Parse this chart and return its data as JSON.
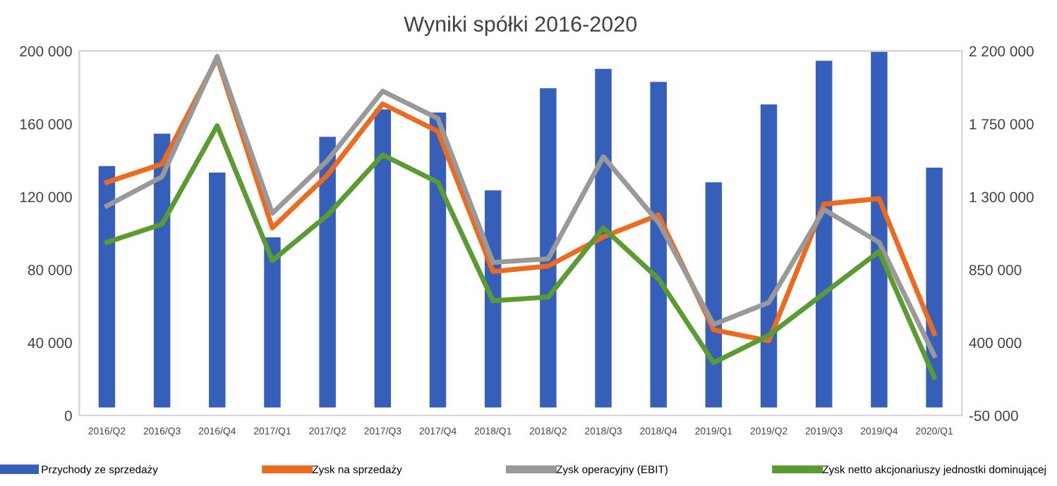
{
  "chart_data": {
    "type": "bar",
    "title": "Wyniki spółki 2016-2020",
    "categories": [
      "2016/Q2",
      "2016/Q3",
      "2016/Q4",
      "2017/Q1",
      "2017/Q2",
      "2017/Q3",
      "2017/Q4",
      "2018/Q1",
      "2018/Q2",
      "2018/Q3",
      "2018/Q4",
      "2019/Q1",
      "2019/Q2",
      "2019/Q3",
      "2019/Q4",
      "2020/Q1"
    ],
    "series": [
      {
        "name": "Przychody ze sprzedaży",
        "axis": "y2",
        "color": "#355fb8",
        "values": [
          1490000,
          1690000,
          1450000,
          1050000,
          1670000,
          1840000,
          1820000,
          1340000,
          1970000,
          2090000,
          2010000,
          1390000,
          1870000,
          2140000,
          2200000,
          1480000
        ]
      },
      {
        "name": "Zysk na sprzedaży",
        "type": "line",
        "color": "#ed6a1f",
        "values": [
          128000,
          138000,
          196000,
          103000,
          132000,
          171000,
          156000,
          79000,
          82000,
          98000,
          110000,
          47000,
          41000,
          116000,
          119000,
          45000
        ]
      },
      {
        "name": "Zysk operacyjny (EBIT)",
        "type": "line",
        "color": "#999999",
        "values": [
          115000,
          131000,
          197000,
          111000,
          140000,
          178000,
          163000,
          84000,
          86000,
          142000,
          106000,
          50000,
          62000,
          113000,
          95000,
          33000
        ]
      },
      {
        "name": "Zysk netto akcjonariuszy jednostki dominującej",
        "type": "line",
        "color": "#5a9b32",
        "values": [
          95000,
          105000,
          159000,
          85000,
          110000,
          143000,
          128000,
          63000,
          65000,
          103000,
          75000,
          29000,
          44000,
          67000,
          90000,
          21000
        ]
      }
    ],
    "ylim": [
      0,
      200000
    ],
    "yticks": [
      {
        "value": 0,
        "label": "0"
      },
      {
        "value": 40000,
        "label": "40 000"
      },
      {
        "value": 80000,
        "label": "80 000"
      },
      {
        "value": 120000,
        "label": "120 000"
      },
      {
        "value": 160000,
        "label": "160 000"
      },
      {
        "value": 200000,
        "label": "200 000"
      }
    ],
    "y2lim": [
      -50000,
      2200000
    ],
    "y2ticks": [
      {
        "value": -50000,
        "label": "-50 000"
      },
      {
        "value": 400000,
        "label": "400 000"
      },
      {
        "value": 850000,
        "label": "850 000"
      },
      {
        "value": 1300000,
        "label": "1 300 000"
      },
      {
        "value": 1750000,
        "label": "1 750 000"
      },
      {
        "value": 2200000,
        "label": "2 200 000"
      }
    ],
    "grid": false,
    "legend": "bottom",
    "line_style": "solid",
    "marker": "none"
  }
}
